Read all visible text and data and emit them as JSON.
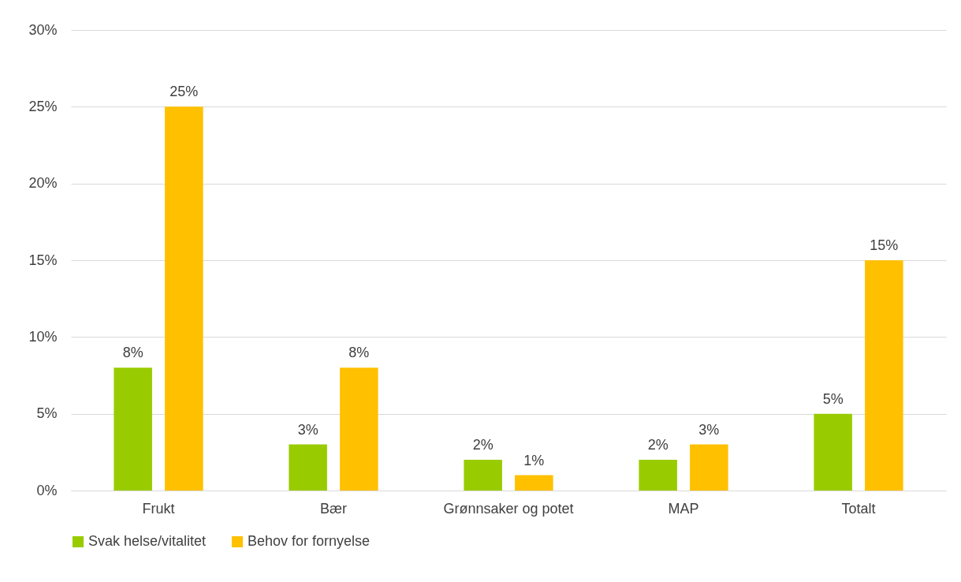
{
  "chart_data": {
    "type": "bar",
    "categories": [
      "Frukt",
      "Bær",
      "Grønnsaker og potet",
      "MAP",
      "Totalt"
    ],
    "series": [
      {
        "name": "Svak helse/vitalitet",
        "color": "#99cc00",
        "values": [
          8,
          3,
          2,
          2,
          5
        ],
        "value_labels": [
          "8%",
          "3%",
          "2%",
          "2%",
          "5%"
        ]
      },
      {
        "name": "Behov for fornyelse",
        "color": "#ffc000",
        "values": [
          25,
          8,
          1,
          3,
          15
        ],
        "value_labels": [
          "25%",
          "8%",
          "1%",
          "3%",
          "15%"
        ]
      }
    ],
    "ylim": [
      0,
      30
    ],
    "yticks": [
      {
        "value": 0,
        "label": "0%"
      },
      {
        "value": 5,
        "label": "5%"
      },
      {
        "value": 10,
        "label": "10%"
      },
      {
        "value": 15,
        "label": "15%"
      },
      {
        "value": 20,
        "label": "20%"
      },
      {
        "value": 25,
        "label": "25%"
      },
      {
        "value": 30,
        "label": "30%"
      }
    ],
    "grid": "y",
    "legend": "bottom"
  }
}
